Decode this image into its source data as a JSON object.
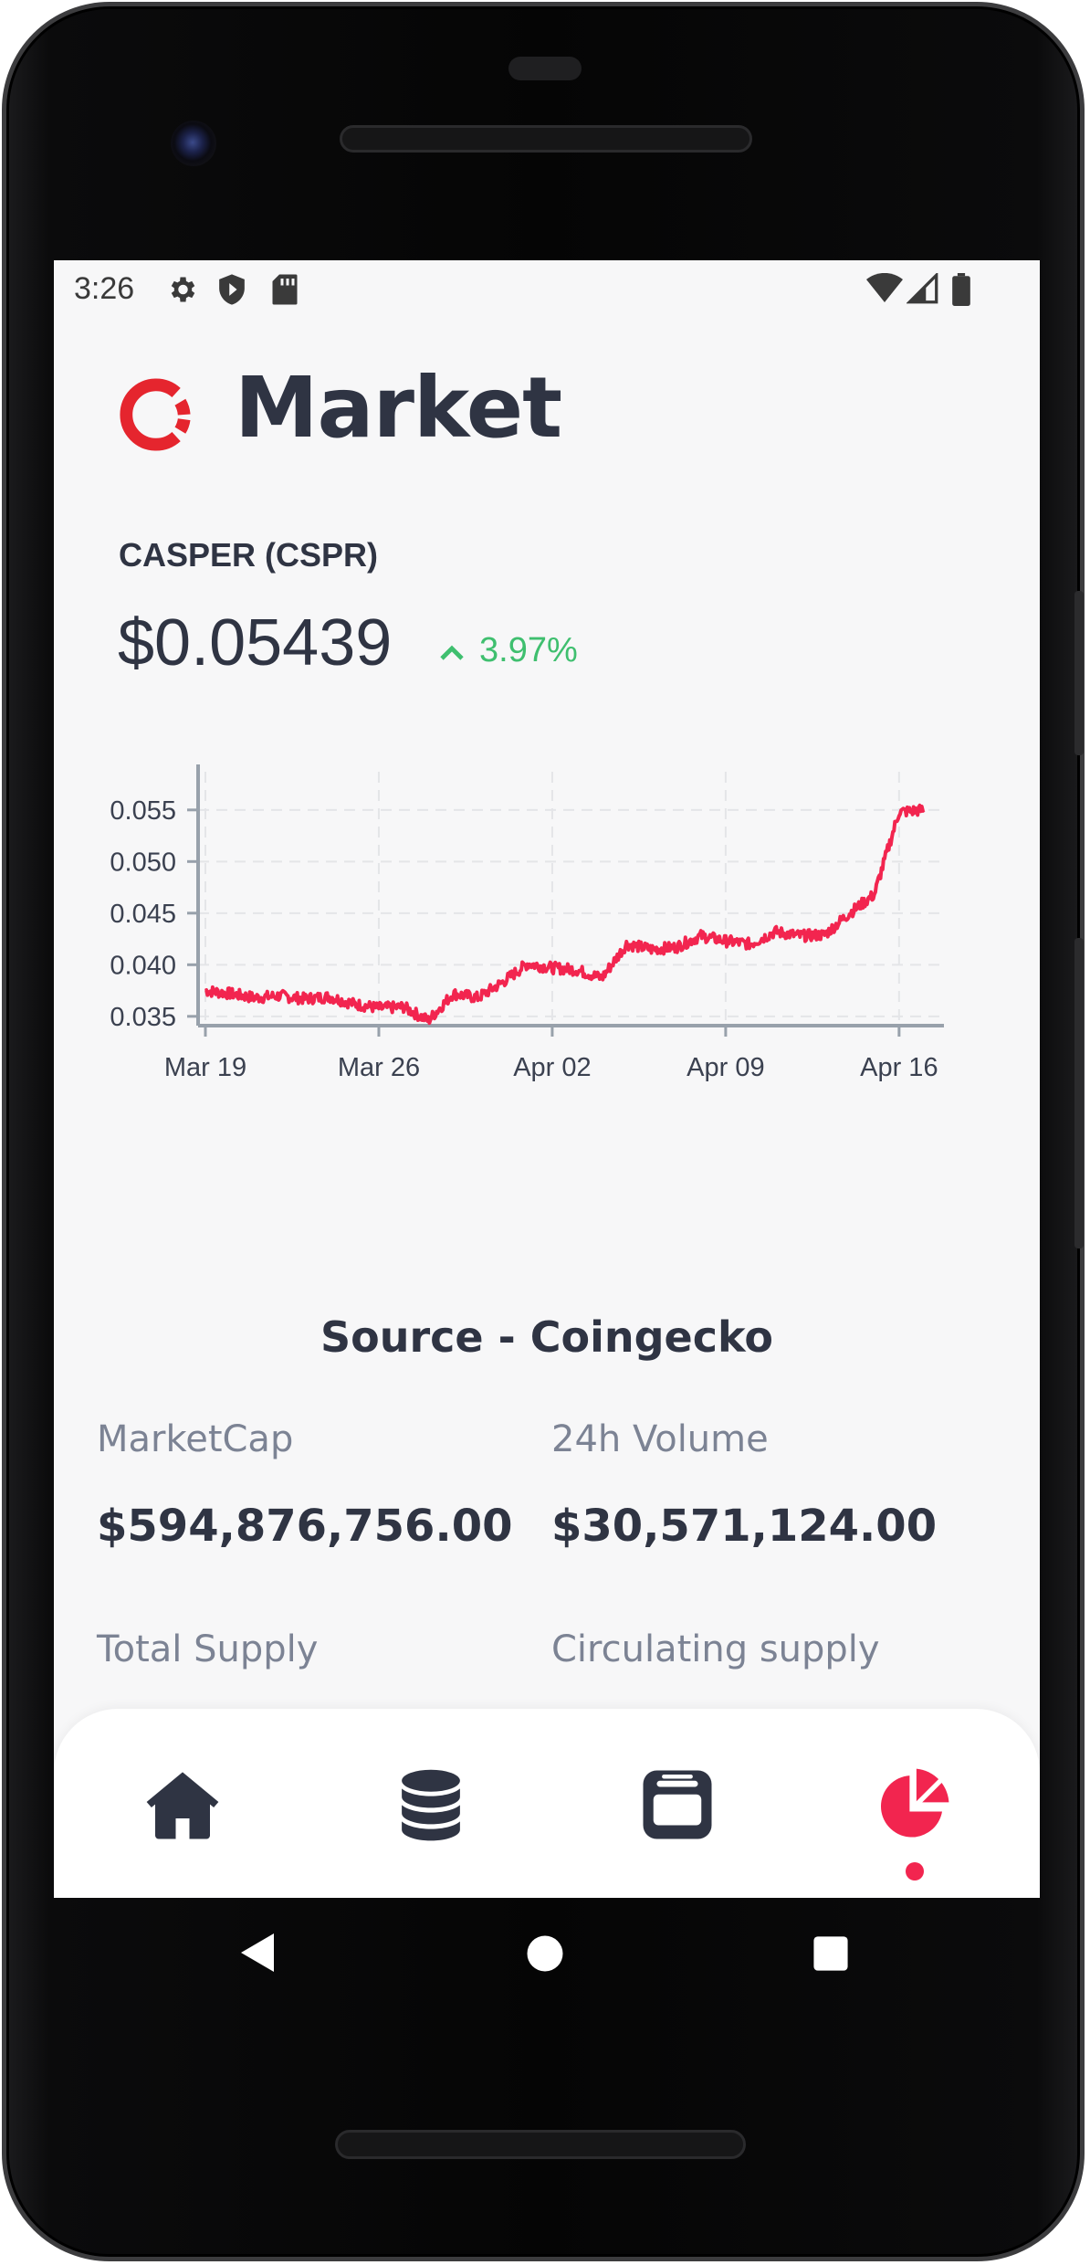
{
  "status_bar": {
    "time": "3:26",
    "left_icons": [
      "gear-icon",
      "shield-icon",
      "sd-card-icon"
    ],
    "right_icons": [
      "wifi-icon",
      "signal-icon",
      "battery-icon"
    ]
  },
  "header": {
    "title": "Market",
    "logo": "casper-logo"
  },
  "coin": {
    "name": "CASPER (CSPR)",
    "price": "$0.05439",
    "change": "3.97%",
    "change_direction": "up"
  },
  "chart_data": {
    "type": "line",
    "xlabel": "",
    "ylabel": "",
    "x_tick_labels": [
      "Mar 19",
      "Mar 26",
      "Apr 02",
      "Apr 09",
      "Apr 16"
    ],
    "y_tick_labels": [
      "0.035",
      "0.040",
      "0.045",
      "0.050",
      "0.055"
    ],
    "ylim": [
      0.0341,
      0.0587
    ],
    "xlim": [
      "2023-03-19",
      "2023-04-17"
    ],
    "grid": true,
    "line_color": "#f2254f",
    "series": [
      {
        "x": [
          "2023-03-19",
          "2023-03-20",
          "2023-03-21",
          "2023-03-22",
          "2023-03-23",
          "2023-03-24",
          "2023-03-25",
          "2023-03-26",
          "2023-03-27",
          "2023-03-28",
          "2023-03-29",
          "2023-03-30",
          "2023-03-31",
          "2023-04-01",
          "2023-04-02",
          "2023-04-03",
          "2023-04-04",
          "2023-04-05",
          "2023-04-06",
          "2023-04-07",
          "2023-04-08",
          "2023-04-09",
          "2023-04-10",
          "2023-04-11",
          "2023-04-12",
          "2023-04-13",
          "2023-04-14",
          "2023-04-15",
          "2023-04-16",
          "2023-04-17"
        ],
        "values": [
          0.0375,
          0.0372,
          0.0368,
          0.037,
          0.0367,
          0.0369,
          0.0362,
          0.0358,
          0.0359,
          0.0346,
          0.0372,
          0.0368,
          0.0383,
          0.0401,
          0.0397,
          0.0395,
          0.0387,
          0.042,
          0.0415,
          0.0417,
          0.0428,
          0.0423,
          0.042,
          0.0432,
          0.0428,
          0.0429,
          0.045,
          0.0468,
          0.0548,
          0.055
        ]
      }
    ]
  },
  "source_label": "Source - Coingecko",
  "stats": {
    "market_cap_label": "MarketCap",
    "market_cap_value": "$594,876,756.00",
    "volume_label": "24h Volume",
    "volume_value": "$30,571,124.00",
    "total_supply_label": "Total Supply",
    "circulating_supply_label": "Circulating supply"
  },
  "bottom_nav": {
    "items": [
      "home-icon",
      "coins-stack-icon",
      "wallet-icon",
      "pie-chart-icon"
    ],
    "active": "pie-chart-icon",
    "active_color": "#f2254f",
    "inactive_color": "#2f3443"
  }
}
